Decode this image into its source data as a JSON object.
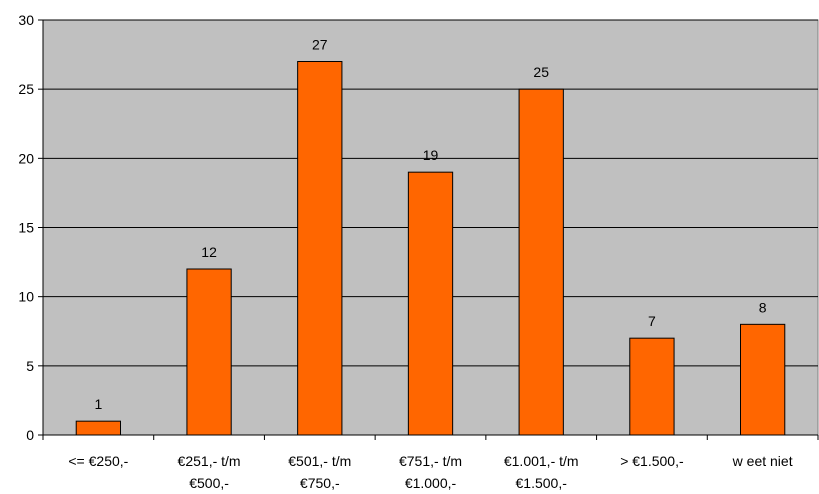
{
  "chart_data": {
    "type": "bar",
    "title": "",
    "xlabel": "",
    "ylabel": "",
    "ylim": [
      0,
      30
    ],
    "yticks": [
      0,
      5,
      10,
      15,
      20,
      25,
      30
    ],
    "grid": true,
    "legend": "none",
    "categories": [
      [
        "<= €250,-"
      ],
      [
        "€251,- t/m",
        "€500,-"
      ],
      [
        "€501,- t/m",
        "€750,-"
      ],
      [
        "€751,- t/m",
        "€1.000,-"
      ],
      [
        "€1.001,- t/m",
        "€1.500,-"
      ],
      [
        "> €1.500,-"
      ],
      [
        "w eet niet"
      ]
    ],
    "series": [
      {
        "values": [
          1,
          12,
          27,
          19,
          25,
          7,
          8
        ],
        "color": "#ff6600"
      }
    ],
    "data_labels": [
      "1",
      "12",
      "27",
      "19",
      "25",
      "7",
      "8"
    ],
    "plot_background": "#c0c0c0"
  }
}
